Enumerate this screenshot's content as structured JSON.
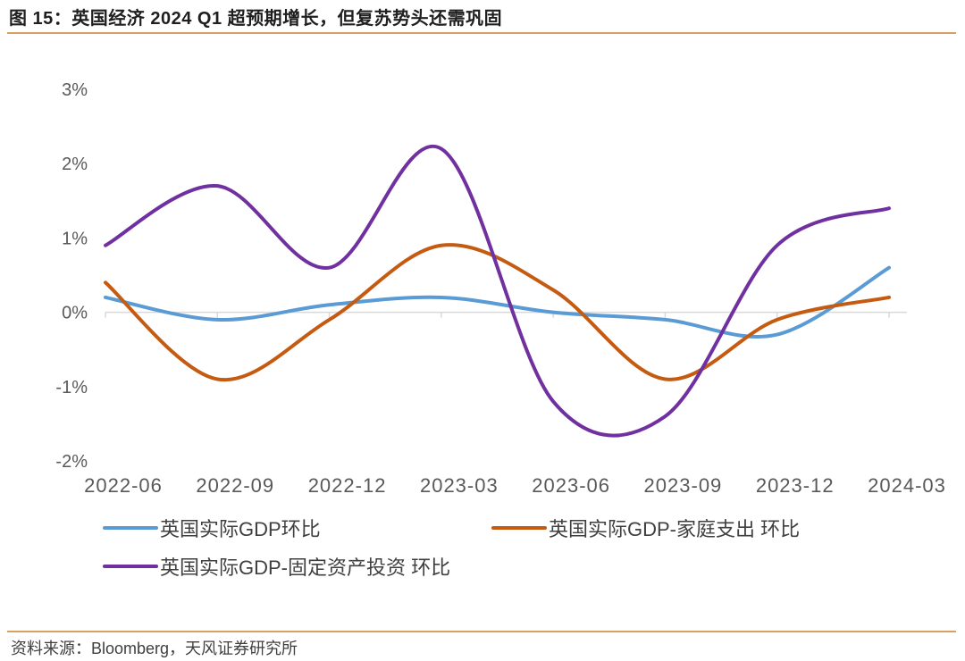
{
  "title": "图 15：英国经济 2024 Q1 超预期增长，但复苏势头还需巩固",
  "source": "资料来源：Bloomberg，天风证券研究所",
  "chart_data": {
    "type": "line",
    "x": [
      "2022-06",
      "2022-09",
      "2022-12",
      "2023-03",
      "2023-06",
      "2023-09",
      "2023-12",
      "2024-03"
    ],
    "y_ticks": [
      "3%",
      "2%",
      "1%",
      "0%",
      "-1%",
      "-2%"
    ],
    "ylim": [
      -2,
      3
    ],
    "grid": false,
    "legend_position": "bottom",
    "series": [
      {
        "name": "英国实际GDP环比",
        "color": "#5b9bd5",
        "values": [
          0.2,
          -0.1,
          0.1,
          0.2,
          0.0,
          -0.1,
          -0.3,
          0.6
        ]
      },
      {
        "name": "英国实际GDP-家庭支出 环比",
        "color": "#c55a11",
        "values": [
          0.4,
          -0.9,
          -0.1,
          0.9,
          0.3,
          -0.9,
          -0.1,
          0.2
        ]
      },
      {
        "name": "英国实际GDP-固定资产投资 环比",
        "color": "#7030a0",
        "values": [
          0.9,
          1.7,
          0.6,
          2.2,
          -1.2,
          -1.4,
          0.9,
          1.4
        ]
      }
    ]
  }
}
